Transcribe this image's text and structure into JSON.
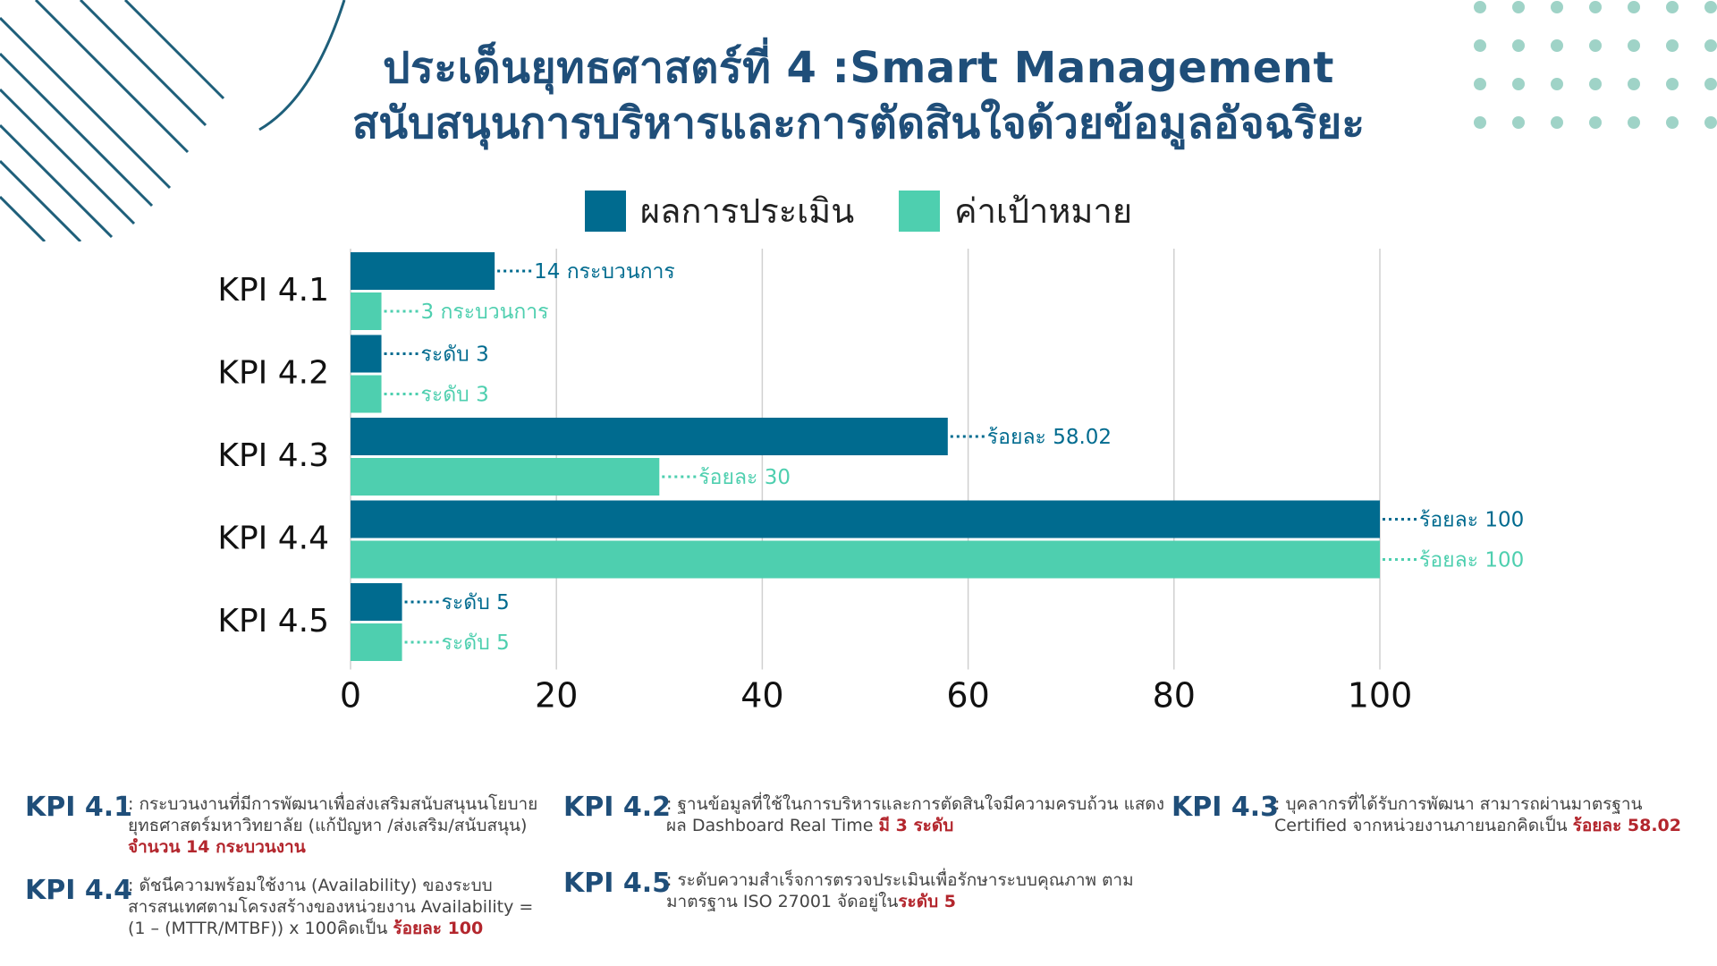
{
  "title_line1": "ประเด็นยุทธศาสตร์ที่ 4 :Smart Management",
  "title_line2": "สนับสนุนการบริหารและการตัดสินใจด้วยข้อมูลอัจฉริยะ",
  "colors": {
    "result": "#006b8f",
    "target": "#4ecfaf",
    "title": "#1f4e79",
    "highlight": "#b3262d",
    "grid": "#d0d0d0"
  },
  "chart_data": {
    "type": "bar",
    "orientation": "horizontal",
    "categories": [
      "KPI 4.1",
      "KPI 4.2",
      "KPI 4.3",
      "KPI 4.4",
      "KPI 4.5"
    ],
    "series": [
      {
        "name": "ผลการประเมิน",
        "values": [
          14,
          3,
          58.02,
          100,
          5
        ],
        "labels": [
          "14 กระบวนการ",
          "ระดับ 3",
          "ร้อยละ 58.02",
          "ร้อยละ 100",
          "ระดับ 5"
        ]
      },
      {
        "name": "ค่าเป้าหมาย",
        "values": [
          3,
          3,
          30,
          100,
          5
        ],
        "labels": [
          "3 กระบวนการ",
          "ระดับ 3",
          "ร้อยละ 30",
          "ร้อยละ 100",
          "ระดับ 5"
        ]
      }
    ],
    "xlim": [
      0,
      100
    ],
    "xticks": [
      "0",
      "20",
      "40",
      "60",
      "80",
      "100"
    ],
    "grid": true,
    "legend_position": "top"
  },
  "notes": [
    {
      "kpi": "KPI 4.1",
      "text": ": กระบวนงานที่มีการพัฒนาเพื่อส่งเสริมสนับสนุนนโยบายยุทธศาสตร์มหาวิทยาลัย (แก้ปัญหา /ส่งเสริม/สนับสนุน) ",
      "highlight": "จำนวน 14 กระบวนงาน"
    },
    {
      "kpi": "KPI 4.2",
      "text": ": ฐานข้อมูลที่ใช้ในการบริหารและการตัดสินใจมีความครบถ้วน แสดงผล Dashboard Real Time ",
      "highlight": "มี 3 ระดับ"
    },
    {
      "kpi": "KPI 4.3",
      "text": ": บุคลากรที่ได้รับการพัฒนา สามารถผ่านมาตรฐาน Certified จากหน่วยงานภายนอกคิดเป็น ",
      "highlight": "ร้อยละ 58.02"
    },
    {
      "kpi": "KPI 4.4",
      "text": ": ดัชนีความพร้อมใช้งาน (Availability) ของระบบสารสนเทศตามโครงสร้างของหน่วยงาน Availability = (1 – (MTTR/MTBF)) x 100คิดเป็น ",
      "highlight": "ร้อยละ 100"
    },
    {
      "kpi": "KPI 4.5",
      "text": ": ระดับความสำเร็จการตรวจประเมินเพื่อรักษาระบบคุณภาพ ตามมาตรฐาน ISO 27001 จัดอยู่ใน",
      "highlight": "ระดับ 5"
    }
  ]
}
